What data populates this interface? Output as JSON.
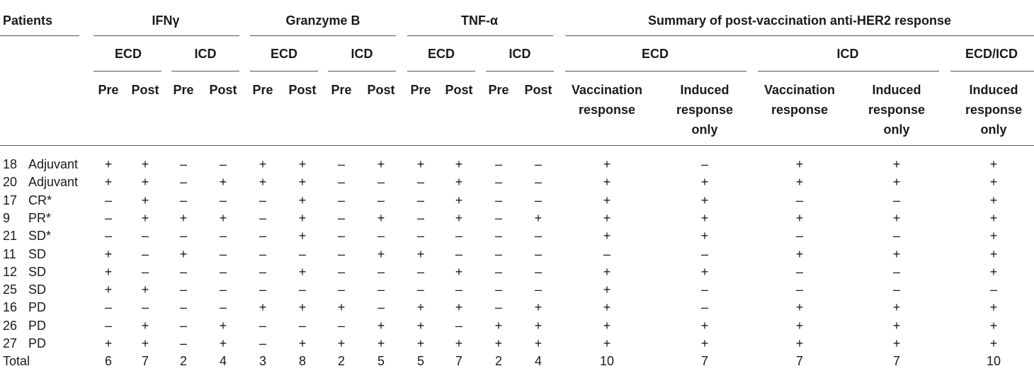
{
  "header": {
    "patients": "Patients",
    "groups": [
      "IFNγ",
      "Granzyme B",
      "TNF-α"
    ],
    "summary": "Summary of post-vaccination anti-HER2 response",
    "ecd": "ECD",
    "icd": "ICD",
    "ecd_icd": "ECD/ICD",
    "pre": "Pre",
    "post": "Post",
    "vaccination_response": [
      "Vaccination",
      "response"
    ],
    "induced_response_only": [
      "Induced",
      "response",
      "only"
    ]
  },
  "rows": [
    {
      "id": "18",
      "label": "Adjuvant",
      "cells": [
        "+",
        "+",
        "–",
        "–",
        "+",
        "+",
        "–",
        "+",
        "+",
        "+",
        "–",
        "–",
        "+",
        "–",
        "+",
        "+",
        "+"
      ]
    },
    {
      "id": "20",
      "label": "Adjuvant",
      "cells": [
        "+",
        "+",
        "–",
        "+",
        "+",
        "+",
        "–",
        "–",
        "–",
        "+",
        "–",
        "–",
        "+",
        "+",
        "+",
        "+",
        "+"
      ]
    },
    {
      "id": "17",
      "label": "CR*",
      "cells": [
        "–",
        "+",
        "–",
        "–",
        "–",
        "+",
        "–",
        "–",
        "–",
        "+",
        "–",
        "–",
        "+",
        "+",
        "–",
        "–",
        "+"
      ]
    },
    {
      "id": "9",
      "label": "PR*",
      "cells": [
        "–",
        "+",
        "+",
        "+",
        "–",
        "+",
        "–",
        "+",
        "–",
        "+",
        "–",
        "+",
        "+",
        "+",
        "+",
        "+",
        "+"
      ]
    },
    {
      "id": "21",
      "label": "SD*",
      "cells": [
        "–",
        "–",
        "–",
        "–",
        "–",
        "+",
        "–",
        "–",
        "–",
        "–",
        "–",
        "–",
        "+",
        "+",
        "–",
        "–",
        "+"
      ]
    },
    {
      "id": "11",
      "label": "SD",
      "cells": [
        "+",
        "–",
        "+",
        "–",
        "–",
        "–",
        "–",
        "+",
        "+",
        "–",
        "–",
        "–",
        "–",
        "–",
        "+",
        "+",
        "+"
      ]
    },
    {
      "id": "12",
      "label": "SD",
      "cells": [
        "+",
        "–",
        "–",
        "–",
        "–",
        "+",
        "–",
        "–",
        "–",
        "+",
        "–",
        "–",
        "+",
        "+",
        "–",
        "–",
        "+"
      ]
    },
    {
      "id": "25",
      "label": "SD",
      "cells": [
        "+",
        "+",
        "–",
        "–",
        "–",
        "–",
        "–",
        "–",
        "–",
        "–",
        "–",
        "–",
        "+",
        "–",
        "–",
        "–",
        "–"
      ]
    },
    {
      "id": "16",
      "label": "PD",
      "cells": [
        "–",
        "–",
        "–",
        "–",
        "+",
        "+",
        "+",
        "–",
        "+",
        "+",
        "–",
        "+",
        "+",
        "–",
        "+",
        "+",
        "+"
      ]
    },
    {
      "id": "26",
      "label": "PD",
      "cells": [
        "–",
        "+",
        "–",
        "+",
        "–",
        "–",
        "–",
        "+",
        "+",
        "–",
        "+",
        "+",
        "+",
        "+",
        "+",
        "+",
        "+"
      ]
    },
    {
      "id": "27",
      "label": "PD",
      "cells": [
        "+",
        "+",
        "–",
        "+",
        "–",
        "+",
        "+",
        "+",
        "+",
        "+",
        "+",
        "+",
        "+",
        "+",
        "+",
        "+",
        "+"
      ]
    }
  ],
  "total": {
    "label": "Total",
    "cells": [
      "6",
      "7",
      "2",
      "4",
      "3",
      "8",
      "2",
      "5",
      "5",
      "7",
      "2",
      "4",
      "10",
      "7",
      "7",
      "7",
      "10"
    ]
  }
}
